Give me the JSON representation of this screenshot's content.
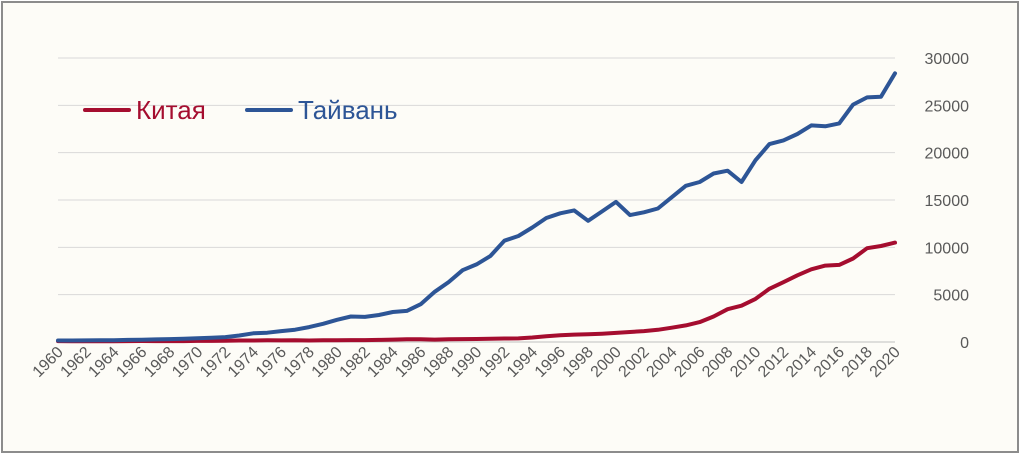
{
  "chart_data": {
    "type": "line",
    "title": "",
    "xlabel": "",
    "ylabel": "",
    "ylim": [
      0,
      30000
    ],
    "yticks": [
      0,
      5000,
      10000,
      15000,
      20000,
      25000,
      30000
    ],
    "xlim": [
      1960,
      2020
    ],
    "xticks": [
      "1960",
      "1962",
      "1964",
      "1966",
      "1968",
      "1970",
      "1972",
      "1974",
      "1976",
      "1978",
      "1980",
      "1982",
      "1984",
      "1986",
      "1988",
      "1990",
      "1992",
      "1994",
      "1996",
      "1998",
      "2000",
      "2002",
      "2004",
      "2006",
      "2008",
      "2010",
      "2012",
      "2014",
      "2016",
      "2018",
      "2020"
    ],
    "grid": true,
    "y_axis_position": "right",
    "legend_position": "top-left",
    "x": [
      1960,
      1961,
      1962,
      1963,
      1964,
      1965,
      1966,
      1967,
      1968,
      1969,
      1970,
      1971,
      1972,
      1973,
      1974,
      1975,
      1976,
      1977,
      1978,
      1979,
      1980,
      1981,
      1982,
      1983,
      1984,
      1985,
      1986,
      1987,
      1988,
      1989,
      1990,
      1991,
      1992,
      1993,
      1994,
      1995,
      1996,
      1997,
      1998,
      1999,
      2000,
      2001,
      2002,
      2003,
      2004,
      2005,
      2006,
      2007,
      2008,
      2009,
      2010,
      2011,
      2012,
      2013,
      2014,
      2015,
      2016,
      2017,
      2018,
      2019,
      2020
    ],
    "series": [
      {
        "name": "Китая",
        "color": "#a50d2f",
        "values": [
          90,
          76,
          70,
          74,
          85,
          98,
          104,
          97,
          91,
          100,
          113,
          119,
          132,
          157,
          160,
          178,
          165,
          185,
          156,
          183,
          195,
          197,
          203,
          225,
          250,
          294,
          281,
          252,
          283,
          310,
          318,
          333,
          366,
          377,
          473,
          610,
          709,
          782,
          829,
          873,
          959,
          1053,
          1149,
          1289,
          1509,
          1753,
          2099,
          2694,
          3468,
          3832,
          4550,
          5618,
          6317,
          7051,
          7679,
          8067,
          8148,
          8817,
          9905,
          10144,
          10500
        ]
      },
      {
        "name": "Тайвань",
        "color": "#2d5596",
        "values": [
          160,
          155,
          170,
          180,
          195,
          220,
          245,
          270,
          305,
          345,
          390,
          440,
          520,
          690,
          920,
          980,
          1150,
          1300,
          1570,
          1920,
          2340,
          2690,
          2650,
          2850,
          3170,
          3290,
          3990,
          5300,
          6330,
          7580,
          8200,
          9100,
          10700,
          11200,
          12100,
          13100,
          13600,
          13900,
          12800,
          13800,
          14800,
          13400,
          13700,
          14100,
          15300,
          16500,
          16900,
          17800,
          18100,
          16900,
          19200,
          20900,
          21300,
          21970,
          22880,
          22780,
          23090,
          25080,
          25840,
          25910,
          28380
        ]
      }
    ]
  }
}
